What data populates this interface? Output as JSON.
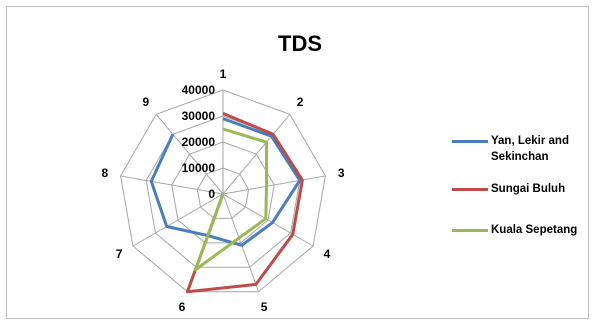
{
  "chart_data": {
    "type": "radar",
    "title": "TDS",
    "categories": [
      "1",
      "2",
      "3",
      "4",
      "5",
      "6",
      "7",
      "8",
      "9"
    ],
    "rlim": [
      0,
      40000
    ],
    "ticks": [
      "0",
      "10000",
      "20000",
      "30000",
      "40000"
    ],
    "tick_values": [
      0,
      10000,
      20000,
      30000,
      40000
    ],
    "grid": true,
    "legend_position": "right",
    "series": [
      {
        "name": "Yan, Lekir and Sekinchan",
        "color": "#4a7ebb",
        "values": [
          29000,
          29000,
          30000,
          22000,
          21000,
          17000,
          25000,
          28000,
          30000
        ]
      },
      {
        "name": "Sungai Buluh",
        "color": "#be4b48",
        "values": [
          31000,
          30000,
          31000,
          31000,
          37000,
          40000,
          0,
          0,
          0
        ]
      },
      {
        "name": "Kuala Sepetang",
        "color": "#98b954",
        "values": [
          25000,
          26000,
          17000,
          19000,
          18000,
          31000,
          0,
          0,
          0
        ]
      }
    ]
  }
}
